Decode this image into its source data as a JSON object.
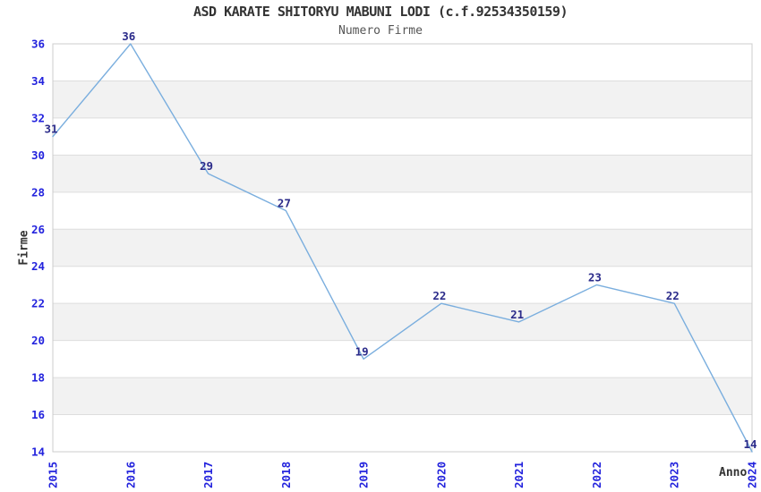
{
  "chart_data": {
    "type": "line",
    "title": "ASD KARATE SHITORYU MABUNI LODI (c.f.92534350159)",
    "subtitle": "Numero Firme",
    "xlabel": "Anno",
    "ylabel": "Firme",
    "categories": [
      "2015",
      "2016",
      "2017",
      "2018",
      "2019",
      "2020",
      "2021",
      "2022",
      "2023",
      "2024"
    ],
    "series": [
      {
        "name": "Numero Firme",
        "values": [
          31,
          36,
          29,
          27,
          19,
          22,
          21,
          23,
          22,
          14
        ]
      }
    ],
    "ylim": [
      14,
      36
    ],
    "ytick_step": 2,
    "yticks": [
      14,
      16,
      18,
      20,
      22,
      24,
      26,
      28,
      30,
      32,
      34,
      36
    ],
    "xtick_rotation_deg": -90,
    "grid": "horizontal",
    "alternating_bands": true,
    "legend": "none",
    "data_labels_shown": true,
    "colors": {
      "line": "#7aaede",
      "axis_tick_label": "#2323dd",
      "data_label": "#2b2b8a",
      "title": "#333333",
      "subtitle": "#555555",
      "axis_title": "#333333",
      "gridline": "#dddddd",
      "band": "#f2f2f2",
      "plot_border": "#cccccc",
      "background": "#ffffff"
    }
  }
}
